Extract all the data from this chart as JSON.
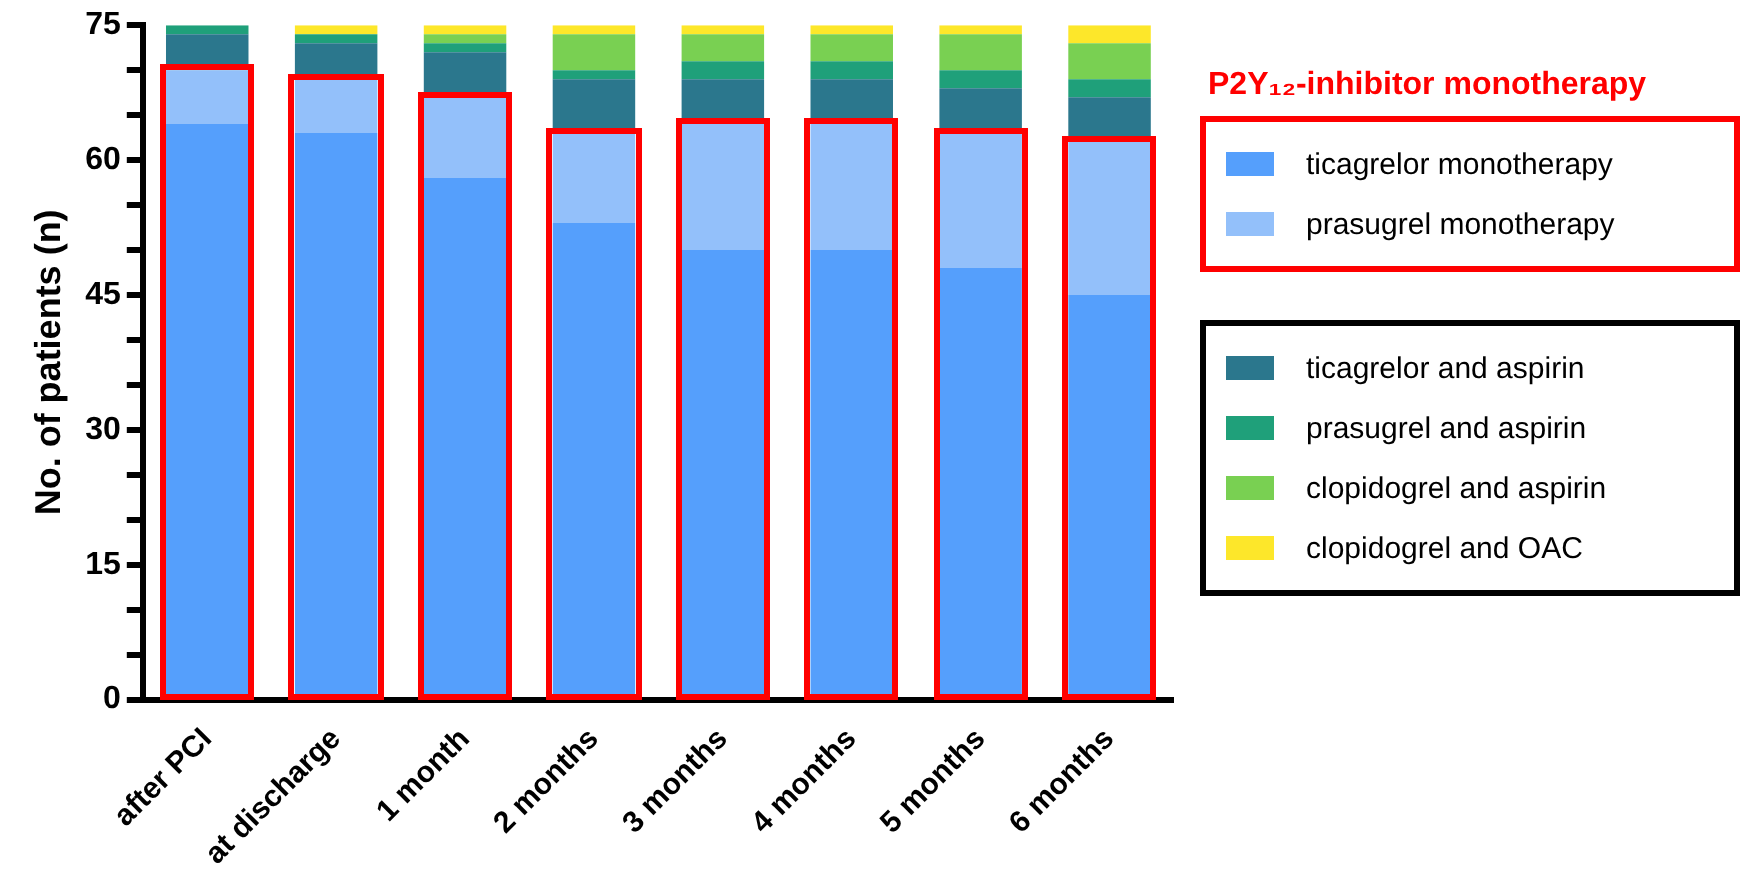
{
  "chart_data": {
    "type": "bar",
    "stacked": true,
    "ylabel": "No. of patients (n)",
    "legend": "right",
    "legend_title": "P2Y₁₂-inhibitor monotherapy",
    "categories": [
      "after PCI",
      "at discharge",
      "1 month",
      "2 months",
      "3 months",
      "4 months",
      "5 months",
      "6 months"
    ],
    "ylim": [
      0,
      75
    ],
    "yticks": [
      0,
      {
        "value": 5,
        "label": null
      },
      {
        "value": 10,
        "label": null
      },
      15,
      {
        "value": 20,
        "label": null
      },
      {
        "value": 25,
        "label": null
      },
      30,
      {
        "value": 35,
        "label": null
      },
      {
        "value": 40,
        "label": null
      },
      45,
      {
        "value": 50,
        "label": null
      },
      {
        "value": 55,
        "label": null
      },
      60,
      {
        "value": 65,
        "label": null
      },
      {
        "value": 70,
        "label": null
      },
      75
    ],
    "grid": false,
    "series": [
      {
        "name": "ticagrelor monotherapy",
        "color": "#559ffc",
        "values": [
          64,
          63,
          58,
          53,
          50,
          50,
          48,
          45
        ]
      },
      {
        "name": "prasugrel monotherapy",
        "color": "#93c0fa",
        "values": [
          6,
          6,
          9,
          10,
          14,
          14,
          15,
          17
        ]
      },
      {
        "name": "ticagrelor and aspirin",
        "color": "#2b778d",
        "values": [
          4,
          4,
          5,
          6,
          5,
          5,
          5,
          5
        ]
      },
      {
        "name": "prasugrel and aspirin",
        "color": "#1fa07a",
        "values": [
          1,
          1,
          1,
          1,
          2,
          2,
          2,
          2
        ]
      },
      {
        "name": "clopidogrel and aspirin",
        "color": "#79d052",
        "values": [
          0,
          0,
          1,
          4,
          3,
          3,
          4,
          4
        ]
      },
      {
        "name": "clopidogrel and OAC",
        "color": "#fde72a",
        "values": [
          0,
          1,
          1,
          1,
          1,
          1,
          1,
          2
        ]
      }
    ]
  }
}
